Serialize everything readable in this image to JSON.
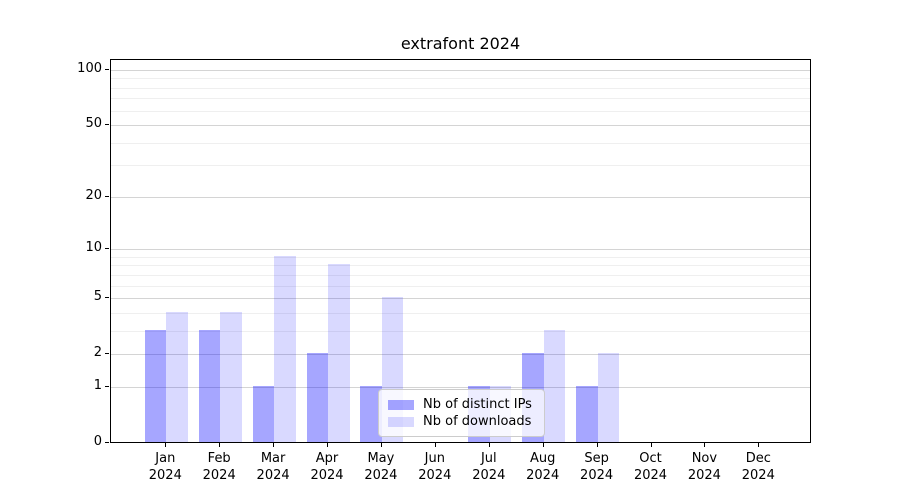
{
  "title": "extrafont 2024",
  "chart_data": {
    "type": "bar",
    "title": "extrafont 2024",
    "yscale": "log1p",
    "ylim": [
      0,
      115
    ],
    "grid": "horizontal",
    "legend_position": "lower center",
    "months": [
      "Jan",
      "Feb",
      "Mar",
      "Apr",
      "May",
      "Jun",
      "Jul",
      "Aug",
      "Sep",
      "Oct",
      "Nov",
      "Dec"
    ],
    "year": "2024",
    "series": [
      {
        "name": "Nb of distinct IPs",
        "color": "rgba(0,0,255,0.35)",
        "values": [
          3,
          3,
          1,
          2,
          1,
          0,
          1,
          2,
          1,
          0,
          0,
          0
        ]
      },
      {
        "name": "Nb of downloads",
        "color": "rgba(0,0,255,0.15)",
        "values": [
          4,
          4,
          9,
          8,
          5,
          0,
          1,
          3,
          2,
          0,
          0,
          0
        ]
      }
    ],
    "y_tick_labels": [
      "100",
      "50",
      "20",
      "10",
      "5",
      "2",
      "1",
      "0"
    ],
    "y_tick_values": [
      100,
      50,
      20,
      10,
      5,
      2,
      1,
      0
    ],
    "y_minor_gridlines": [
      90,
      80,
      70,
      60,
      40,
      30,
      9,
      8,
      7,
      6,
      4,
      3
    ]
  },
  "colors": {
    "axis": "#000000",
    "major_grid": "#d4d4d4",
    "minor_grid": "#efefef",
    "legend_border": "#cccccc",
    "legend_bg": "rgba(255,255,255,0.8)"
  }
}
